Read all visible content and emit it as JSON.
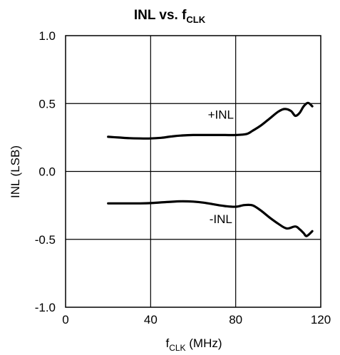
{
  "chart_data": {
    "type": "line",
    "title": {
      "main": "INL vs. f",
      "sub": "CLK"
    },
    "xlabel": {
      "main": "f",
      "sub": "CLK",
      "rest": " (MHz)"
    },
    "ylabel": "INL (LSB)",
    "xlim": [
      0,
      120
    ],
    "ylim": [
      -1.0,
      1.0
    ],
    "x_ticks": [
      "0",
      "40",
      "80",
      "120"
    ],
    "y_ticks": [
      "1.0",
      "0.5",
      "0.0",
      "-0.5",
      "-1.0"
    ],
    "grid": true,
    "series": [
      {
        "name": "+INL",
        "x": [
          20,
          25,
          30,
          35,
          40,
          45,
          50,
          55,
          60,
          65,
          70,
          75,
          80,
          85,
          88,
          92,
          96,
          100,
          103,
          106,
          108,
          110,
          112,
          114,
          116
        ],
        "y": [
          0.255,
          0.25,
          0.245,
          0.243,
          0.243,
          0.248,
          0.258,
          0.265,
          0.268,
          0.268,
          0.268,
          0.268,
          0.268,
          0.275,
          0.3,
          0.34,
          0.39,
          0.44,
          0.46,
          0.445,
          0.41,
          0.43,
          0.48,
          0.505,
          0.48
        ]
      },
      {
        "name": "-INL",
        "x": [
          20,
          25,
          30,
          35,
          40,
          45,
          50,
          55,
          60,
          65,
          70,
          75,
          80,
          84,
          88,
          92,
          96,
          100,
          104,
          108,
          110,
          112,
          113,
          114,
          116
        ],
        "y": [
          -0.235,
          -0.235,
          -0.235,
          -0.235,
          -0.233,
          -0.228,
          -0.223,
          -0.22,
          -0.222,
          -0.23,
          -0.243,
          -0.255,
          -0.26,
          -0.248,
          -0.25,
          -0.29,
          -0.34,
          -0.385,
          -0.42,
          -0.405,
          -0.425,
          -0.455,
          -0.475,
          -0.47,
          -0.44
        ]
      }
    ],
    "annotations": [
      {
        "text": "+INL",
        "x": 73,
        "y": 0.42
      },
      {
        "text": "-INL",
        "x": 73,
        "y": -0.35
      }
    ]
  }
}
